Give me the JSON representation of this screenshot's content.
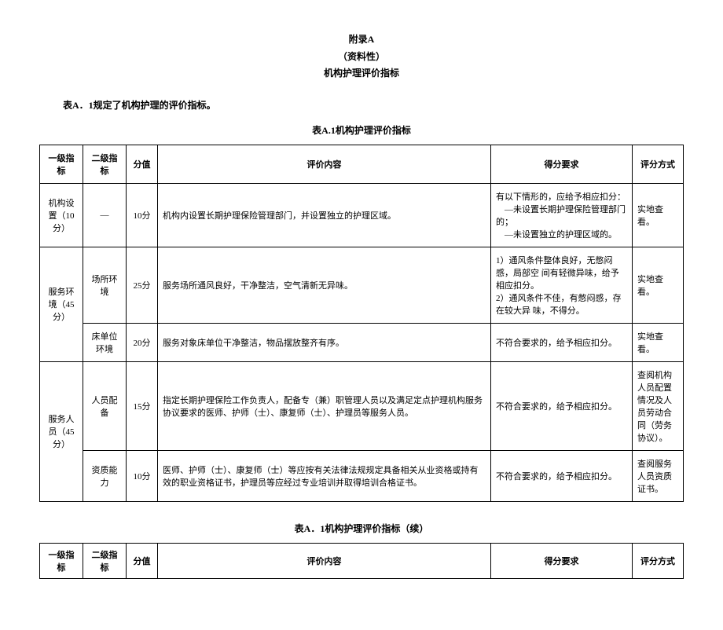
{
  "header": {
    "line1": "附录A",
    "line2": "（资料性）",
    "line3": "机构护理评价指标"
  },
  "intro": "表A．1规定了机构护理的评价指标。",
  "table1_title": "表A.1机构护理评价指标",
  "table2_title": "表A．1机构护理评价指标（续）",
  "columns": {
    "l1": "一级指标",
    "l2": "二级指标",
    "score": "分值",
    "content": "评价内容",
    "req": "得分要求",
    "method": "评分方式"
  },
  "rows": [
    {
      "l1": "机构设置（10 分）",
      "l2": "—",
      "score": "10分",
      "content": "机构内设置长期护理保险管理部门，并设置独立的护理区域。",
      "req": "有以下情形的，应给予相应扣分：\n　—未设置长期护理保险管理部门的；\n　—未设置独立的护理区域的。",
      "method": "实地查看。"
    },
    {
      "l1": "服务环境（45 分）",
      "l1_rowspan": 2,
      "l2": "场所环境",
      "score": "25分",
      "content": "服务场所通风良好，干净整洁，空气清新无异味。",
      "req": "1）通风条件整体良好，无憋闷感，局部空 间有轻微异味，给予相应扣分。\n2）通风条件不佳，有憋闷感，存在较大异 味，不得分。",
      "method": "实地查看。"
    },
    {
      "l2": "床单位环境",
      "score": "20分",
      "content": "服务对象床单位干净整洁，物品摆放整齐有序。",
      "req": "不符合要求的，给予相应扣分。",
      "method": "实地查看。"
    },
    {
      "l1": "服务人员（45 分）",
      "l1_rowspan": 2,
      "l2": "人员配备",
      "score": "15分",
      "content": "指定长期护理保险工作负责人，配备专（兼）职管理人员以及满足定点护理机构服务协议要求的医师、护师（士）、康复师（士）、护理员等服务人员。",
      "req": "不符合要求的，给予相应扣分。",
      "method": "查阅机构人员配置情况及人员劳动合同（劳务协议）。"
    },
    {
      "l2": "资质能力",
      "score": "10分",
      "content": "医师、护师（士）、康复师（士）等应按有关法律法规规定具备相关从业资格或持有效的职业资格证书，护理员等应经过专业培训并取得培训合格证书。",
      "req": "不符合要求的，给予相应扣分。",
      "method": "查阅服务人员资质证书。"
    }
  ]
}
